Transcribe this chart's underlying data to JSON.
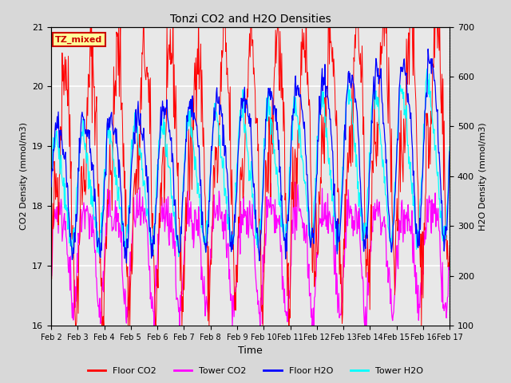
{
  "title": "Tonzi CO2 and H2O Densities",
  "xlabel": "Time",
  "ylabel_left": "CO2 Density (mmol/m3)",
  "ylabel_right": "H2O Density (mmol/m3)",
  "ylim_left": [
    16.0,
    21.0
  ],
  "ylim_right": [
    100,
    700
  ],
  "annotation_text": "TZ_mixed",
  "annotation_color": "#cc0000",
  "annotation_bg": "#ffff99",
  "annotation_border": "#cc0000",
  "fig_bg_color": "#d8d8d8",
  "plot_bg_color": "#e8e8e8",
  "legend_entries": [
    "Floor CO2",
    "Tower CO2",
    "Floor H2O",
    "Tower H2O"
  ],
  "legend_colors": [
    "red",
    "magenta",
    "blue",
    "cyan"
  ],
  "x_tick_labels": [
    "Feb 2",
    "Feb 3",
    "Feb 4",
    "Feb 5",
    "Feb 6",
    "Feb 7",
    "Feb 8",
    "Feb 9",
    "Feb 10",
    "Feb 11",
    "Feb 12",
    "Feb 13",
    "Feb 14",
    "Feb 15",
    "Feb 16",
    "Feb 17"
  ],
  "n_days": 15,
  "seed": 42
}
